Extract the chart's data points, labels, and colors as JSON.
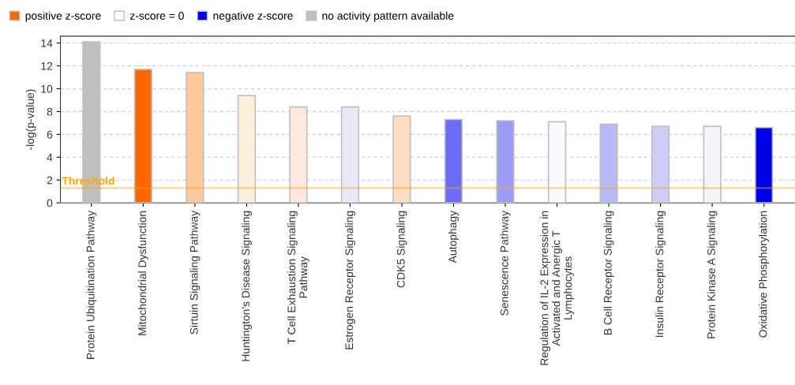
{
  "chart_data": {
    "type": "bar",
    "ylabel": "-log(p-value)",
    "categories": [
      "Protein Ubiquitination Pathway",
      "Mitochondrial Dysfunction",
      "Sirtuin Signaling Pathway",
      "Huntington's Disease Signaling",
      "T Cell Exhaustion Signaling\nPathway",
      "Estrogen Receptor Signaling",
      "CDK5 Signaling",
      "Autophagy",
      "Senescence Pathway",
      "Regulation of IL-2 Expression in\nActivated and Anergic T\nLymphocytes",
      "B Cell Receptor Signaling",
      "Insulin Receptor Signaling",
      "Protein Kinase A Signaling",
      "Oxidative Phosphorylation"
    ],
    "series": [
      {
        "name": "positive z-score",
        "color": "#ff6600",
        "values": [
          null,
          11.7,
          11.4,
          9.4,
          8.4,
          null,
          7.6,
          null,
          null,
          null,
          null,
          null,
          null,
          null
        ],
        "colors": [
          null,
          "#ff6600",
          "#fdc89c",
          "#faf0dc",
          "#fce8dc",
          null,
          "#fddcbf",
          null,
          null,
          null,
          null,
          null,
          null,
          null
        ]
      },
      {
        "name": "z-score = 0",
        "color": "#ffffff",
        "values": [
          null,
          null,
          null,
          null,
          null,
          null,
          null,
          null,
          null,
          7.1,
          null,
          null,
          6.7,
          null
        ],
        "colors": [
          null,
          null,
          null,
          null,
          null,
          null,
          null,
          null,
          null,
          "#f9f9ff",
          null,
          null,
          "#f3f3f8",
          null
        ]
      },
      {
        "name": "negative z-score",
        "color": "#0000ee",
        "values": [
          null,
          null,
          null,
          null,
          null,
          8.4,
          null,
          7.3,
          7.2,
          null,
          6.9,
          6.7,
          null,
          6.6
        ],
        "colors": [
          null,
          null,
          null,
          null,
          null,
          "#e8e8f8",
          null,
          "#6b6bf5",
          "#9d9df5",
          null,
          "#b8b8f5",
          "#cdcdf8",
          null,
          "#0000e6"
        ]
      },
      {
        "name": "no activity pattern available",
        "color": "#bfbfbf",
        "values": [
          14.1,
          null,
          null,
          null,
          null,
          null,
          null,
          null,
          null,
          null,
          null,
          null,
          null,
          null
        ],
        "colors": [
          "#bfbfbf",
          null,
          null,
          null,
          null,
          null,
          null,
          null,
          null,
          null,
          null,
          null,
          null,
          null
        ]
      }
    ],
    "ylim": [
      0,
      14.6
    ],
    "yticks": [
      0,
      2,
      4,
      6,
      8,
      10,
      12,
      14
    ],
    "grid": "y",
    "legend": "top left",
    "ref_lines": [
      {
        "axis": "y",
        "value": 1.3,
        "label": "Threshold",
        "color": "#ffa500"
      }
    ]
  }
}
